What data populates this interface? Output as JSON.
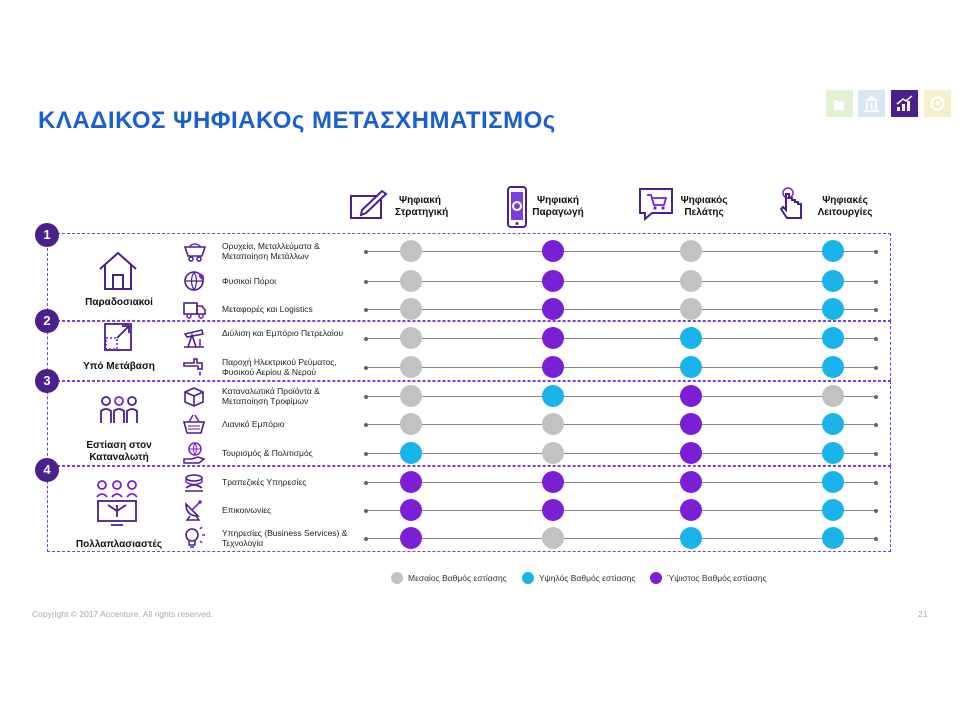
{
  "title": "ΚΛΑΔΙΚΟΣ ΨΗΦΙΑΚΟς ΜΕΤΑΣΧΗΜΑΤΙΣΜΟς",
  "colors": {
    "medium": "#c2c2c2",
    "high": "#1ab4ea",
    "highest": "#7b1fd6",
    "title": "#1a5fd1",
    "number_badge": "#4b1f8c",
    "dashed_border": "#7b3fe0"
  },
  "columns": [
    {
      "label1": "Ψηφιακή",
      "label2": "Στρατηγική",
      "icon": "pen-on-paper-icon"
    },
    {
      "label1": "Ψηφιακή",
      "label2": "Παραγωγή",
      "icon": "smartphone-gears-icon"
    },
    {
      "label1": "Ψηφιακός",
      "label2": "Πελάτης",
      "icon": "shopping-cart-chat-icon"
    },
    {
      "label1": "Ψηφιακές",
      "label2": "Λειτουργίες",
      "icon": "touch-hand-icon"
    }
  ],
  "groups": [
    {
      "number": "1",
      "label": "Παραδοσιακοί",
      "icon": "house-icon"
    },
    {
      "number": "2",
      "label": "Υπό Μετάβαση",
      "icon": "transition-arrow-icon"
    },
    {
      "number": "3",
      "label": "Εστίαση στον Καταναλωτή",
      "icon": "people-icon"
    },
    {
      "number": "4",
      "label": "Πολλαπλασιαστές",
      "icon": "network-people-icon"
    }
  ],
  "rows": [
    {
      "label": "Ορυχεία, Μεταλλεύματα & Μεταποίηση Μετάλλων",
      "icon": "mine-cart-icon",
      "levels": [
        "medium",
        "highest",
        "medium",
        "high"
      ]
    },
    {
      "label": "Φυσικοί Πόροι",
      "icon": "globe-leaf-icon",
      "levels": [
        "medium",
        "highest",
        "medium",
        "high"
      ]
    },
    {
      "label": "Μεταφορές και Logistics",
      "icon": "truck-icon",
      "levels": [
        "medium",
        "highest",
        "medium",
        "high"
      ]
    },
    {
      "label": "Διύλιση και Εμπόριο Πετρελαίου",
      "icon": "oil-pump-icon",
      "levels": [
        "medium",
        "highest",
        "high",
        "high"
      ]
    },
    {
      "label": "Παροχή Ηλεκτρικού Ρεύματος, Φυσικού Αερίου & Νερού",
      "icon": "faucet-icon",
      "levels": [
        "medium",
        "highest",
        "high",
        "high"
      ]
    },
    {
      "label": "Καταναλωτικά Προϊόντα & Μεταποίηση Τροφίμων",
      "icon": "box-icon",
      "levels": [
        "medium",
        "high",
        "highest",
        "medium"
      ]
    },
    {
      "label": "Λιανικό Εμπόριο",
      "icon": "basket-icon",
      "levels": [
        "medium",
        "medium",
        "highest",
        "high"
      ]
    },
    {
      "label": "Τουρισμός & Πολιτισμός",
      "icon": "hand-globe-icon",
      "levels": [
        "high",
        "medium",
        "highest",
        "high"
      ]
    },
    {
      "label": "Τραπεζικές Υπηρεσίες",
      "icon": "bank-coins-icon",
      "levels": [
        "highest",
        "highest",
        "highest",
        "high"
      ]
    },
    {
      "label": "Επικοινωνίες",
      "icon": "satellite-dish-icon",
      "levels": [
        "highest",
        "highest",
        "highest",
        "high"
      ]
    },
    {
      "label": "Υπηρεσίες (Business Services) & Τεχνολογία",
      "icon": "lightbulb-icon",
      "levels": [
        "highest",
        "medium",
        "high",
        "high"
      ]
    }
  ],
  "legend": [
    {
      "level": "medium",
      "label": "Μεσαίος Βαθμός εστίασης"
    },
    {
      "level": "high",
      "label": "Υψηλός Βαθμός εστίασης"
    },
    {
      "level": "highest",
      "label": "Ύψιστος Βαθμός εστίασης"
    }
  ],
  "footer": {
    "copyright": "Copyright © 2017 Accenture. All rights reserved.",
    "page": "21"
  }
}
